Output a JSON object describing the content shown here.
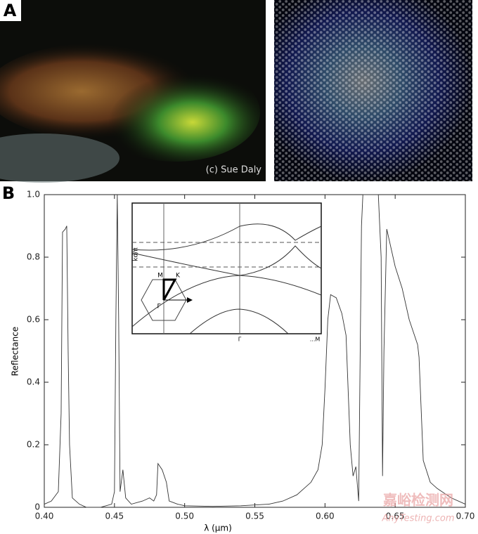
{
  "figure": {
    "label_a": "A",
    "label_b": "B",
    "credit": "(c) Sue Daly"
  },
  "inset": {
    "ylabel": "kd/π",
    "gamma_tick": "Γ",
    "m_tick": "...M",
    "m_label": "M",
    "k_label": "K",
    "gamma_label": "Γ"
  },
  "watermark": {
    "cn": "嘉峪检测网",
    "en": "AnyTesting.com"
  },
  "chart_data": {
    "type": "line",
    "xlabel": "λ (μm)",
    "ylabel": "Reflectance",
    "color": "#333333",
    "x": [
      0.4,
      0.405,
      0.41,
      0.412,
      0.413,
      0.415,
      0.416,
      0.417,
      0.418,
      0.42,
      0.425,
      0.43,
      0.44,
      0.448,
      0.45,
      0.451,
      0.452,
      0.453,
      0.454,
      0.456,
      0.458,
      0.462,
      0.47,
      0.475,
      0.478,
      0.48,
      0.481,
      0.484,
      0.487,
      0.489,
      0.495,
      0.5,
      0.52,
      0.54,
      0.56,
      0.57,
      0.58,
      0.59,
      0.595,
      0.598,
      0.6,
      0.602,
      0.604,
      0.608,
      0.612,
      0.615,
      0.618,
      0.62,
      0.622,
      0.624,
      0.626,
      0.627,
      0.638,
      0.64,
      0.641,
      0.642,
      0.644,
      0.646,
      0.65,
      0.655,
      0.66,
      0.666,
      0.667,
      0.67,
      0.675,
      0.68,
      0.69,
      0.7
    ],
    "values": [
      0.01,
      0.02,
      0.05,
      0.3,
      0.88,
      0.89,
      0.9,
      0.5,
      0.2,
      0.03,
      0.01,
      0.0,
      0.0,
      0.01,
      0.05,
      0.6,
      1.0,
      0.6,
      0.05,
      0.12,
      0.03,
      0.01,
      0.02,
      0.03,
      0.02,
      0.04,
      0.14,
      0.12,
      0.08,
      0.02,
      0.01,
      0.005,
      0.003,
      0.005,
      0.01,
      0.02,
      0.04,
      0.08,
      0.12,
      0.2,
      0.38,
      0.6,
      0.68,
      0.67,
      0.62,
      0.55,
      0.2,
      0.1,
      0.13,
      0.02,
      0.9,
      1.0,
      1.0,
      0.8,
      0.1,
      0.5,
      0.89,
      0.85,
      0.77,
      0.7,
      0.6,
      0.52,
      0.48,
      0.15,
      0.08,
      0.06,
      0.03,
      0.01
    ],
    "xlim": [
      0.4,
      0.7
    ],
    "xticks": [
      {
        "value": 0.4,
        "label": "0.40"
      },
      {
        "value": 0.45,
        "label": "0.45"
      },
      {
        "value": 0.5,
        "label": "0.50"
      },
      {
        "value": 0.55,
        "label": "0.55"
      },
      {
        "value": 0.6,
        "label": "0.60"
      },
      {
        "value": 0.65,
        "label": "0.65"
      },
      {
        "value": 0.7,
        "label": "0.70"
      }
    ],
    "ylim": [
      0,
      1
    ],
    "yticks": [
      0,
      0.2,
      0.4,
      0.6,
      0.8,
      {
        "value": 1,
        "label": "1.0"
      }
    ],
    "grid": false
  }
}
